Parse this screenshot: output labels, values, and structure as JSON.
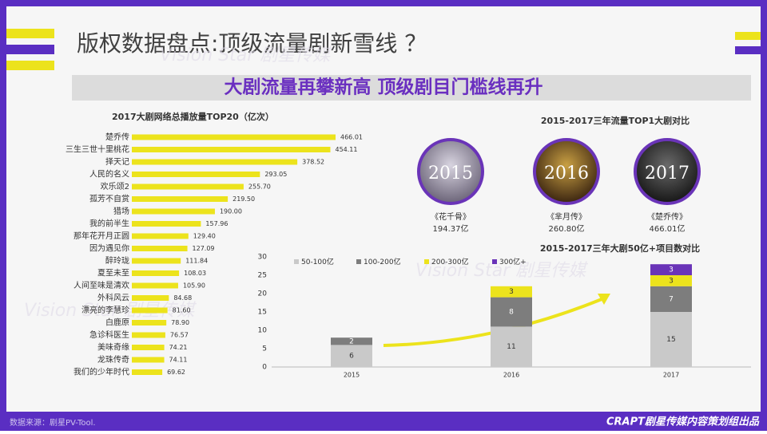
{
  "title": "版权数据盘点:顶级流量剧新雪线 ？",
  "subtitle": "大剧流量再攀新高 顶级剧目门槛线再升",
  "watermark": "Vision Star 剧星传媒",
  "source": "数据来源：剧星PV-Tool.",
  "credit": "CRAPT剧星传媒内容策划组出品",
  "top_dramas": {
    "title": "2015-2017三年流量TOP1大剧对比",
    "items": [
      {
        "year": "2015",
        "name": "《花千骨》",
        "views": "194.37亿"
      },
      {
        "year": "2016",
        "name": "《芈月传》",
        "views": "260.80亿"
      },
      {
        "year": "2017",
        "name": "《楚乔传》",
        "views": "466.01亿"
      }
    ]
  },
  "chart_data": [
    {
      "type": "hbar",
      "title": "2017大剧网络总播放量TOP20（亿次）",
      "color": "#ece31c",
      "categories": [
        "楚乔传",
        "三生三世十里桃花",
        "择天记",
        "人民的名义",
        "欢乐颂2",
        "孤芳不自赏",
        "猎场",
        "我的前半生",
        "那年花开月正圆",
        "因为遇见你",
        "醉玲珑",
        "夏至未至",
        "人间至味是清欢",
        "外科风云",
        "漂亮的李慧珍",
        "白鹿原",
        "急诊科医生",
        "美味奇缘",
        "龙珠传奇",
        "我们的少年时代"
      ],
      "values": [
        466.01,
        454.11,
        378.52,
        293.05,
        255.7,
        219.5,
        190,
        157.96,
        129.4,
        127.09,
        111.84,
        108.03,
        105.9,
        84.68,
        81.6,
        78.9,
        76.57,
        74.21,
        74.11,
        69.62
      ],
      "value_labels": [
        "466.01",
        "454.11",
        "378.52",
        "293.05",
        "255.70",
        "219.50",
        "190.00",
        "157.96",
        "129.40",
        "127.09",
        "111.84",
        "108.03",
        "105.90",
        "84.68",
        "81.60",
        "78.90",
        "76.57",
        "74.21",
        "74.11",
        "69.62"
      ]
    },
    {
      "type": "stacked-bar",
      "title": "2015-2017三年大剧50亿+项目数对比",
      "categories": [
        "2015",
        "2016",
        "2017"
      ],
      "series": [
        {
          "name": "50-100亿",
          "color": "#c9c9c9",
          "values": [
            6,
            11,
            15
          ]
        },
        {
          "name": "100-200亿",
          "color": "#7d7d7d",
          "values": [
            2,
            8,
            7
          ]
        },
        {
          "name": "200-300亿",
          "color": "#ece31c",
          "values": [
            0,
            3,
            3
          ]
        },
        {
          "name": "300亿+",
          "color": "#6a34b8",
          "values": [
            0,
            0,
            3
          ]
        }
      ],
      "ylim": [
        0,
        30
      ],
      "yticks": [
        0,
        5,
        10,
        15,
        20,
        25,
        30
      ],
      "legend": "top"
    }
  ]
}
